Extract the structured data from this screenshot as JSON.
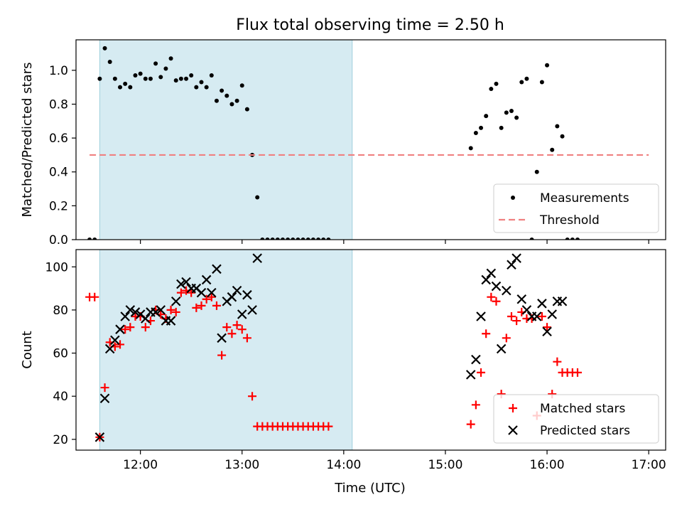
{
  "figure": {
    "title": "Flux total observing time = 2.50 h",
    "xlabel": "Time (UTC)"
  },
  "chart_data": [
    {
      "type": "scatter",
      "ylabel": "Matched/Predicted stars",
      "xlim": [
        "11:22",
        "17:10"
      ],
      "ylim": [
        0,
        1.18
      ],
      "yticks": [
        "0.0",
        "0.2",
        "0.4",
        "0.6",
        "0.8",
        "1.0"
      ],
      "xticks": [
        "12:00",
        "13:00",
        "14:00",
        "15:00",
        "16:00",
        "17:00"
      ],
      "highlight_span": [
        "11:36",
        "14:05"
      ],
      "legend_position": "lower right",
      "series": [
        {
          "name": "Measurements",
          "marker": "dot",
          "color": "#000000",
          "points": [
            [
              "11:30",
              0.0
            ],
            [
              "11:33",
              0.0
            ],
            [
              "11:36",
              0.95
            ],
            [
              "11:39",
              1.13
            ],
            [
              "11:42",
              1.05
            ],
            [
              "11:45",
              0.95
            ],
            [
              "11:48",
              0.9
            ],
            [
              "11:51",
              0.92
            ],
            [
              "11:54",
              0.9
            ],
            [
              "11:57",
              0.97
            ],
            [
              "12:00",
              0.98
            ],
            [
              "12:03",
              0.95
            ],
            [
              "12:06",
              0.95
            ],
            [
              "12:09",
              1.04
            ],
            [
              "12:12",
              0.96
            ],
            [
              "12:15",
              1.01
            ],
            [
              "12:18",
              1.07
            ],
            [
              "12:21",
              0.94
            ],
            [
              "12:24",
              0.95
            ],
            [
              "12:27",
              0.95
            ],
            [
              "12:30",
              0.97
            ],
            [
              "12:33",
              0.9
            ],
            [
              "12:36",
              0.93
            ],
            [
              "12:39",
              0.9
            ],
            [
              "12:42",
              0.97
            ],
            [
              "12:45",
              0.82
            ],
            [
              "12:48",
              0.88
            ],
            [
              "12:51",
              0.85
            ],
            [
              "12:54",
              0.8
            ],
            [
              "12:57",
              0.82
            ],
            [
              "13:00",
              0.91
            ],
            [
              "13:03",
              0.77
            ],
            [
              "13:06",
              0.5
            ],
            [
              "13:09",
              0.25
            ],
            [
              "13:12",
              0.0
            ],
            [
              "13:15",
              0.0
            ],
            [
              "13:18",
              0.0
            ],
            [
              "13:21",
              0.0
            ],
            [
              "13:24",
              0.0
            ],
            [
              "13:27",
              0.0
            ],
            [
              "13:30",
              0.0
            ],
            [
              "13:33",
              0.0
            ],
            [
              "13:36",
              0.0
            ],
            [
              "13:39",
              0.0
            ],
            [
              "13:42",
              0.0
            ],
            [
              "13:45",
              0.0
            ],
            [
              "13:48",
              0.0
            ],
            [
              "13:51",
              0.0
            ],
            [
              "15:15",
              0.54
            ],
            [
              "15:18",
              0.63
            ],
            [
              "15:21",
              0.66
            ],
            [
              "15:24",
              0.73
            ],
            [
              "15:27",
              0.89
            ],
            [
              "15:30",
              0.92
            ],
            [
              "15:33",
              0.66
            ],
            [
              "15:36",
              0.75
            ],
            [
              "15:39",
              0.76
            ],
            [
              "15:42",
              0.72
            ],
            [
              "15:45",
              0.93
            ],
            [
              "15:48",
              0.95
            ],
            [
              "15:51",
              0.0
            ],
            [
              "15:54",
              0.4
            ],
            [
              "15:57",
              0.93
            ],
            [
              "16:00",
              1.03
            ],
            [
              "16:03",
              0.53
            ],
            [
              "16:06",
              0.67
            ],
            [
              "16:09",
              0.61
            ],
            [
              "16:12",
              0.0
            ],
            [
              "16:15",
              0.0
            ],
            [
              "16:18",
              0.0
            ]
          ]
        },
        {
          "name": "Threshold",
          "marker": "dashed-line",
          "color": "#f08080",
          "points": [
            [
              "11:30",
              0.5
            ],
            [
              "17:00",
              0.5
            ]
          ]
        }
      ]
    },
    {
      "type": "scatter",
      "ylabel": "Count",
      "xlim": [
        "11:22",
        "17:10"
      ],
      "ylim": [
        15,
        108
      ],
      "yticks": [
        "20",
        "40",
        "60",
        "80",
        "100"
      ],
      "xticks": [
        "12:00",
        "13:00",
        "14:00",
        "15:00",
        "16:00",
        "17:00"
      ],
      "highlight_span": [
        "11:36",
        "14:05"
      ],
      "legend_position": "lower right",
      "series": [
        {
          "name": "Matched stars",
          "marker": "plus",
          "color": "#ff0000",
          "points": [
            [
              "11:30",
              86
            ],
            [
              "11:33",
              86
            ],
            [
              "11:36",
              21
            ],
            [
              "11:39",
              44
            ],
            [
              "11:42",
              65
            ],
            [
              "11:45",
              63
            ],
            [
              "11:48",
              64
            ],
            [
              "11:51",
              71
            ],
            [
              "11:54",
              72
            ],
            [
              "11:57",
              77
            ],
            [
              "12:00",
              77
            ],
            [
              "12:03",
              72
            ],
            [
              "12:06",
              75
            ],
            [
              "12:09",
              80
            ],
            [
              "12:12",
              78
            ],
            [
              "12:15",
              76
            ],
            [
              "12:18",
              80
            ],
            [
              "12:21",
              79
            ],
            [
              "12:24",
              88
            ],
            [
              "12:27",
              89
            ],
            [
              "12:30",
              88
            ],
            [
              "12:33",
              81
            ],
            [
              "12:36",
              82
            ],
            [
              "12:39",
              85
            ],
            [
              "12:42",
              86
            ],
            [
              "12:45",
              82
            ],
            [
              "12:48",
              59
            ],
            [
              "12:51",
              72
            ],
            [
              "12:54",
              69
            ],
            [
              "12:57",
              73
            ],
            [
              "13:00",
              71
            ],
            [
              "13:03",
              67
            ],
            [
              "13:06",
              40
            ],
            [
              "13:09",
              26
            ],
            [
              "13:12",
              26
            ],
            [
              "13:15",
              26
            ],
            [
              "13:18",
              26
            ],
            [
              "13:21",
              26
            ],
            [
              "13:24",
              26
            ],
            [
              "13:27",
              26
            ],
            [
              "13:30",
              26
            ],
            [
              "13:33",
              26
            ],
            [
              "13:36",
              26
            ],
            [
              "13:39",
              26
            ],
            [
              "13:42",
              26
            ],
            [
              "13:45",
              26
            ],
            [
              "13:48",
              26
            ],
            [
              "13:51",
              26
            ],
            [
              "15:15",
              27
            ],
            [
              "15:18",
              36
            ],
            [
              "15:21",
              51
            ],
            [
              "15:24",
              69
            ],
            [
              "15:27",
              86
            ],
            [
              "15:30",
              84
            ],
            [
              "15:33",
              41
            ],
            [
              "15:36",
              67
            ],
            [
              "15:39",
              77
            ],
            [
              "15:42",
              75
            ],
            [
              "15:45",
              79
            ],
            [
              "15:48",
              76
            ],
            [
              "15:51",
              76
            ],
            [
              "15:54",
              31
            ],
            [
              "15:57",
              77
            ],
            [
              "16:00",
              72
            ],
            [
              "16:03",
              41
            ],
            [
              "16:06",
              56
            ],
            [
              "16:09",
              51
            ],
            [
              "16:12",
              51
            ],
            [
              "16:15",
              51
            ],
            [
              "16:18",
              51
            ]
          ]
        },
        {
          "name": "Predicted stars",
          "marker": "x",
          "color": "#000000",
          "points": [
            [
              "11:36",
              21
            ],
            [
              "11:39",
              39
            ],
            [
              "11:42",
              62
            ],
            [
              "11:45",
              66
            ],
            [
              "11:48",
              71
            ],
            [
              "11:51",
              77
            ],
            [
              "11:54",
              80
            ],
            [
              "11:57",
              79
            ],
            [
              "12:00",
              78
            ],
            [
              "12:03",
              76
            ],
            [
              "12:06",
              79
            ],
            [
              "12:09",
              79
            ],
            [
              "12:12",
              80
            ],
            [
              "12:15",
              75
            ],
            [
              "12:18",
              75
            ],
            [
              "12:21",
              84
            ],
            [
              "12:24",
              92
            ],
            [
              "12:27",
              93
            ],
            [
              "12:30",
              90
            ],
            [
              "12:33",
              90
            ],
            [
              "12:36",
              88
            ],
            [
              "12:39",
              94
            ],
            [
              "12:42",
              88
            ],
            [
              "12:45",
              99
            ],
            [
              "12:48",
              67
            ],
            [
              "12:51",
              84
            ],
            [
              "12:54",
              86
            ],
            [
              "12:57",
              89
            ],
            [
              "13:00",
              78
            ],
            [
              "13:03",
              87
            ],
            [
              "13:06",
              80
            ],
            [
              "13:09",
              104
            ],
            [
              "15:15",
              50
            ],
            [
              "15:18",
              57
            ],
            [
              "15:21",
              77
            ],
            [
              "15:24",
              94
            ],
            [
              "15:27",
              97
            ],
            [
              "15:30",
              91
            ],
            [
              "15:33",
              62
            ],
            [
              "15:36",
              89
            ],
            [
              "15:39",
              101
            ],
            [
              "15:42",
              104
            ],
            [
              "15:45",
              85
            ],
            [
              "15:48",
              80
            ],
            [
              "15:51",
              77
            ],
            [
              "15:54",
              77
            ],
            [
              "15:57",
              83
            ],
            [
              "16:00",
              70
            ],
            [
              "16:03",
              78
            ],
            [
              "16:06",
              84
            ],
            [
              "16:09",
              84
            ]
          ]
        }
      ]
    }
  ]
}
